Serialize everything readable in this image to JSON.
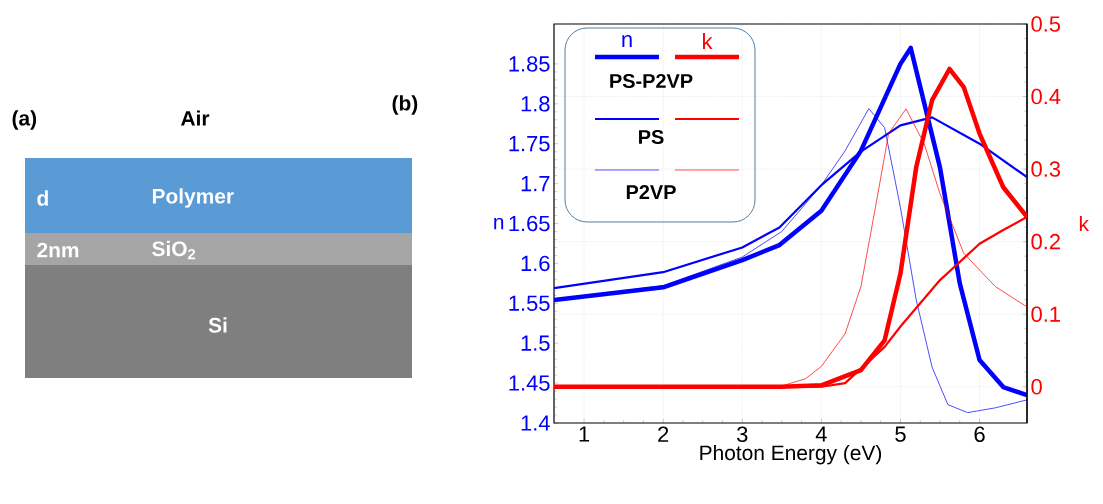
{
  "chart_data": [
    {
      "type": "other",
      "title": "(a)",
      "annotations": [
        "Air",
        "d",
        "Polymer",
        "2nm",
        "SiO$_{2}$",
        "Si"
      ]
    },
    {
      "type": "line",
      "title": "(b)",
      "xlabel": "Photon Energy (eV)",
      "ylabel": "n",
      "y2label": "k",
      "xlim": [
        0.62,
        6.6
      ],
      "xticks": [
        1,
        2,
        3,
        4,
        5,
        6
      ],
      "ylim": [
        1.4,
        1.9
      ],
      "yticks": [
        1.4,
        1.45,
        1.5,
        1.55,
        1.6,
        1.65,
        1.7,
        1.75,
        1.8,
        1.85
      ],
      "y2lim": [
        -0.05,
        0.5
      ],
      "y2ticks": [
        0,
        0.1,
        0.2,
        0.3,
        0.4,
        0.5
      ],
      "grid": true,
      "legend": "top left",
      "annotations": [
        "n",
        "k"
      ],
      "series": [
        {
          "name": "PS-P2VP",
          "color": "#0000ff",
          "axis": "y",
          "x": [
            0.62,
            2,
            3,
            3.47,
            4,
            4.5,
            5,
            5.13,
            5.5,
            5.75,
            6,
            6.3,
            6.6
          ],
          "values": [
            1.554,
            1.57,
            1.604,
            1.623,
            1.666,
            1.741,
            1.85,
            1.87,
            1.72,
            1.575,
            1.479,
            1.445,
            1.435
          ]
        },
        {
          "color": "#ff0000",
          "axis": "y2",
          "x": [
            0.62,
            3.5,
            4,
            4.5,
            4.8,
            5,
            5.2,
            5.4,
            5.62,
            5.8,
            6,
            6.3,
            6.6
          ],
          "values": [
            0,
            0,
            0.002,
            0.023,
            0.064,
            0.156,
            0.303,
            0.395,
            0.438,
            0.413,
            0.349,
            0.275,
            0.234
          ]
        },
        {
          "name": "PS",
          "color": "#0000ff",
          "axis": "y",
          "x": [
            0.62,
            2,
            3,
            3.47,
            4,
            4.5,
            5,
            5.4,
            6,
            6.6
          ],
          "values": [
            1.569,
            1.589,
            1.62,
            1.645,
            1.698,
            1.74,
            1.773,
            1.783,
            1.75,
            1.708
          ]
        },
        {
          "color": "#ff0000",
          "axis": "y2",
          "x": [
            0.62,
            4,
            4.3,
            4.5,
            4.8,
            5,
            5.5,
            6,
            6.3,
            6.6
          ],
          "values": [
            0,
            0,
            0.005,
            0.025,
            0.055,
            0.083,
            0.147,
            0.197,
            0.216,
            0.234
          ]
        },
        {
          "name": "P2VP",
          "color": "#0000ff",
          "axis": "y",
          "x": [
            0.62,
            2,
            3,
            3.5,
            4,
            4.3,
            4.6,
            4.8,
            5,
            5.2,
            5.4,
            5.6,
            5.85,
            6.2,
            6.6
          ],
          "values": [
            1.555,
            1.572,
            1.608,
            1.64,
            1.698,
            1.741,
            1.794,
            1.77,
            1.67,
            1.554,
            1.47,
            1.423,
            1.413,
            1.419,
            1.429
          ]
        },
        {
          "color": "#ff0000",
          "axis": "y2",
          "x": [
            0.62,
            3.47,
            3.8,
            4,
            4.3,
            4.5,
            4.7,
            4.85,
            5.07,
            5.3,
            5.5,
            5.8,
            6.2,
            6.6
          ],
          "values": [
            0,
            0,
            0.011,
            0.028,
            0.073,
            0.138,
            0.257,
            0.349,
            0.383,
            0.335,
            0.266,
            0.184,
            0.138,
            0.11
          ]
        }
      ]
    }
  ]
}
